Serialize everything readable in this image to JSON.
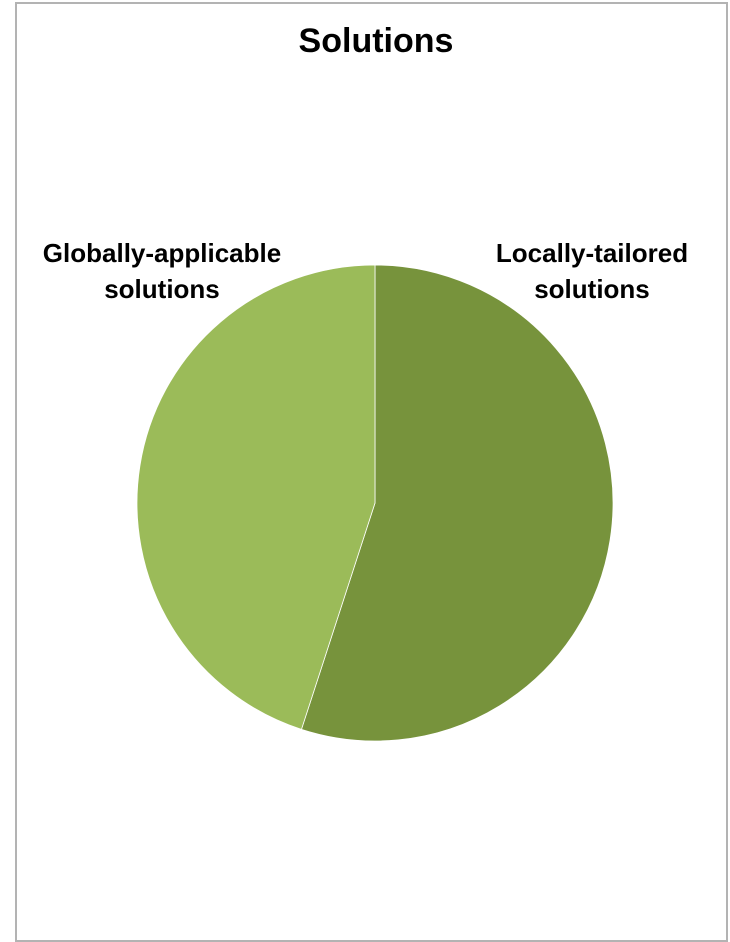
{
  "chart_data": {
    "type": "pie",
    "title": "Solutions",
    "slices": [
      {
        "label": "Locally-tailored solutions",
        "label_lines": [
          "Locally-tailored",
          "solutions"
        ],
        "value": 55,
        "color": "#77933c"
      },
      {
        "label": "Globally-applicable solutions",
        "label_lines": [
          "Globally-applicable",
          "solutions"
        ],
        "value": 45,
        "color": "#9bbb59"
      }
    ],
    "legend": "none"
  }
}
